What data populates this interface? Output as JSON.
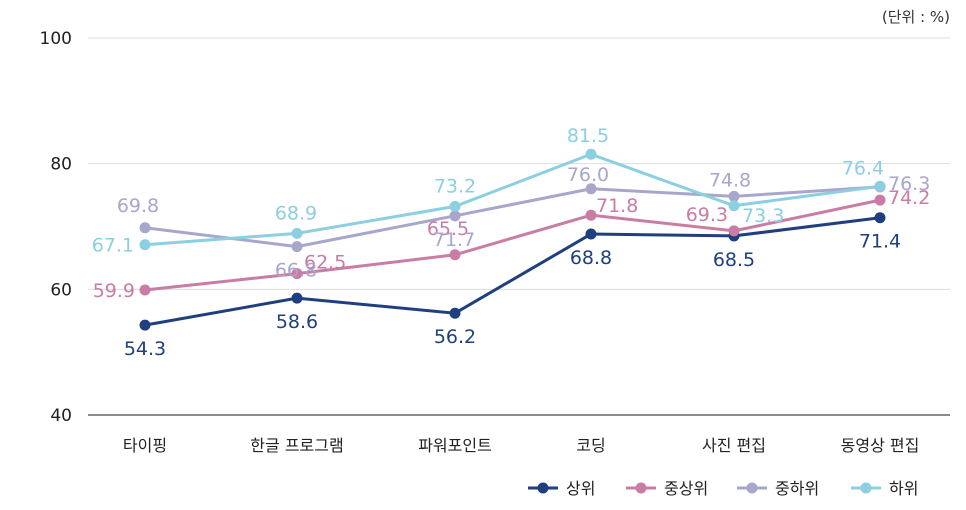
{
  "chart_data": {
    "type": "line",
    "unit_label": "(단위 : %)",
    "categories": [
      "타이핑",
      "한글 프로그램",
      "파워포인트",
      "코딩",
      "사진 편집",
      "동영상 편집"
    ],
    "ylim": [
      40,
      100
    ],
    "yticks": [
      "40",
      "60",
      "80",
      "100"
    ],
    "grid": true,
    "legend": "bottom-right",
    "series": [
      {
        "name": "상위",
        "color": "#1f3f7f",
        "values": [
          54.3,
          58.6,
          56.2,
          68.8,
          68.5,
          71.4
        ],
        "labels": [
          "54.3",
          "58.6",
          "56.2",
          "68.8",
          "68.5",
          "71.4"
        ]
      },
      {
        "name": "중상위",
        "color": "#c97da4",
        "values": [
          59.9,
          62.5,
          65.5,
          71.8,
          69.3,
          74.2
        ],
        "labels": [
          "59.9",
          "62.5",
          "65.5",
          "71.8",
          "69.3",
          "74.2"
        ]
      },
      {
        "name": "중하위",
        "color": "#a9a6cc",
        "values": [
          69.8,
          66.8,
          71.7,
          76.0,
          74.8,
          76.3
        ],
        "labels": [
          "69.8",
          "66.8",
          "71.7",
          "76.0",
          "74.8",
          "76.3"
        ]
      },
      {
        "name": "하위",
        "color": "#8ccfe0",
        "values": [
          67.1,
          68.9,
          73.2,
          81.5,
          73.3,
          76.4
        ],
        "labels": [
          "67.1",
          "68.9",
          "73.2",
          "81.5",
          "73.3",
          "76.4"
        ]
      }
    ]
  }
}
